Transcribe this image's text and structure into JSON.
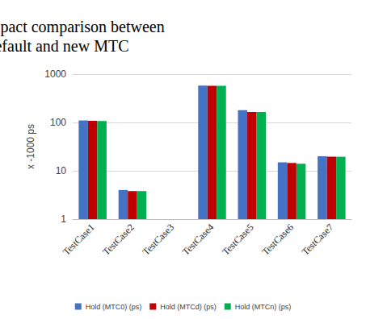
{
  "chart_data": {
    "type": "bar",
    "title": "Hold impact comparison between default and new MTC",
    "y_label": "x -1000 ps",
    "categories": [
      "TestCase1",
      "TestCase2",
      "TestCase3",
      "TestCase4",
      "TestCase5",
      "TestCase6",
      "TestCase7"
    ],
    "series": [
      {
        "name": "Hold (MTC0) (ps)",
        "color": "#4472c4",
        "values": [
          110,
          4.0,
          null,
          580,
          180,
          15,
          20
        ]
      },
      {
        "name": "Hold (MTCd) (ps)",
        "color": "#c00000",
        "values": [
          108,
          3.8,
          null,
          575,
          165,
          14.5,
          19.5
        ]
      },
      {
        "name": "Hold (MTCn) (ps)",
        "color": "#00b050",
        "values": [
          107,
          3.8,
          null,
          575,
          165,
          14,
          19.5
        ]
      }
    ],
    "log": "y",
    "ylim": [
      1,
      1000
    ],
    "yticks": [
      1,
      10,
      100,
      1000
    ],
    "grid": true,
    "legend": "bottom"
  }
}
